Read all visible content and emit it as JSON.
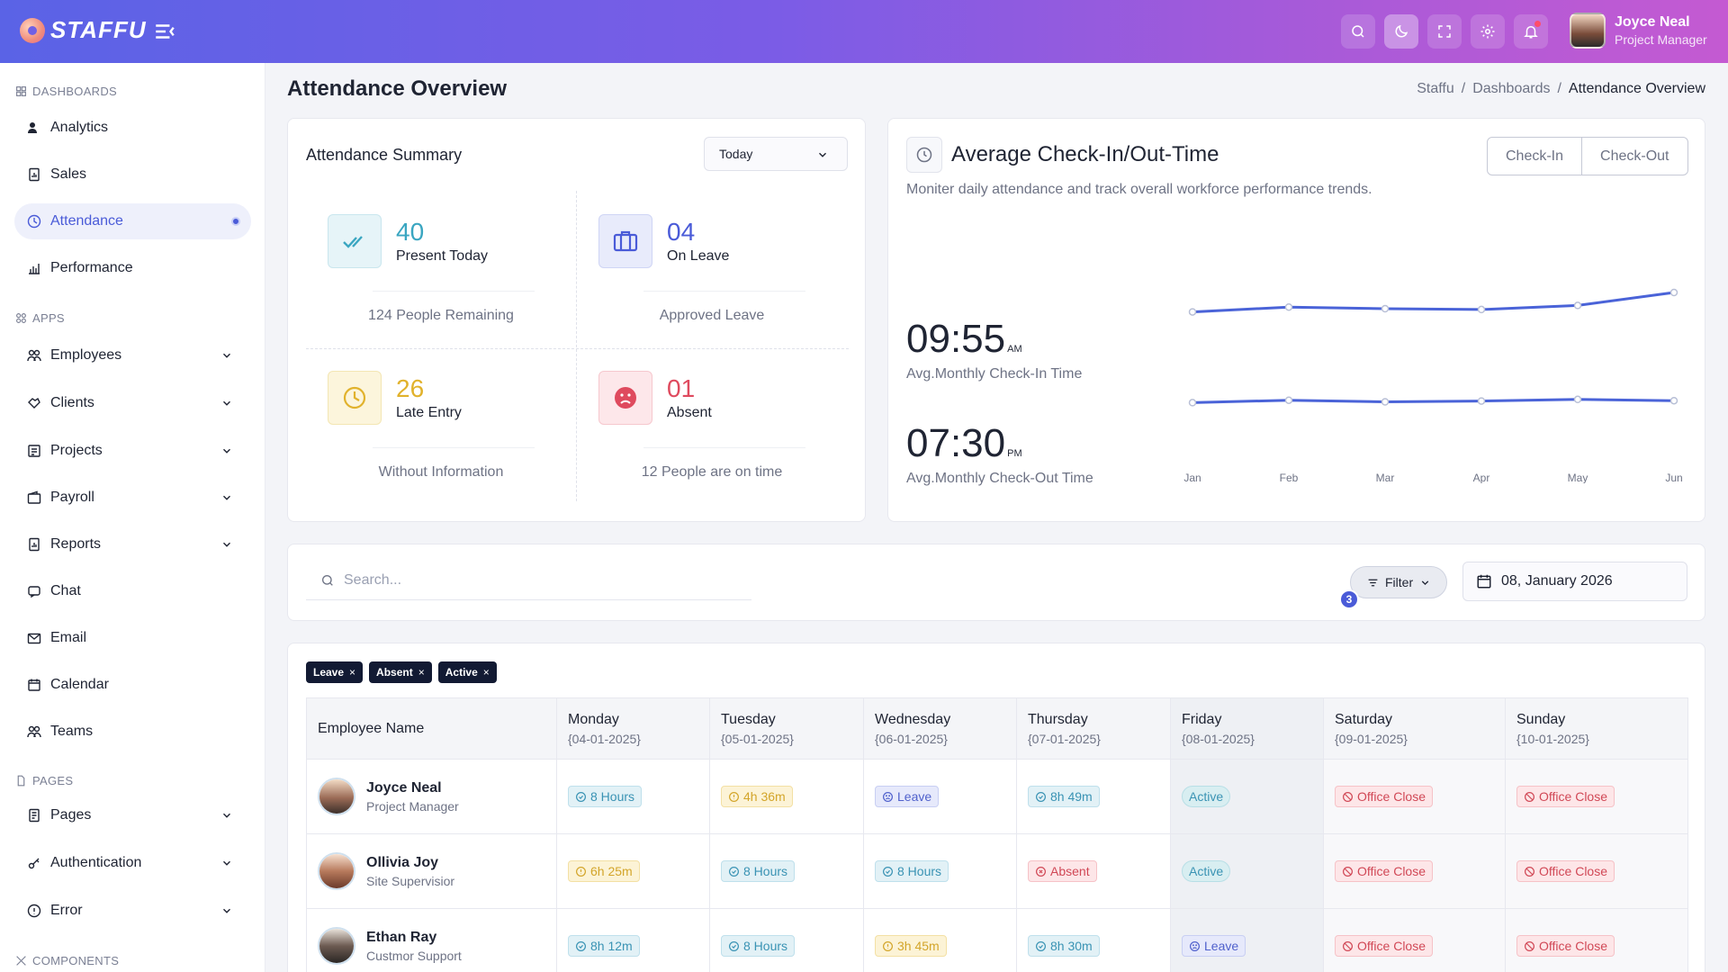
{
  "header": {
    "brand": "STAFFU",
    "user_name": "Joyce Neal",
    "user_role": "Project Manager",
    "icons": [
      "search-icon",
      "moon-icon",
      "fullscreen-icon",
      "gear-icon",
      "bell-icon"
    ]
  },
  "sidebar": {
    "sections": {
      "dashboards": "DASHBOARDS",
      "apps": "APPS",
      "pages": "PAGES",
      "components": "COMPONENTS"
    },
    "items": [
      {
        "label": "Analytics"
      },
      {
        "label": "Sales"
      },
      {
        "label": "Attendance",
        "active": true
      },
      {
        "label": "Performance"
      },
      {
        "label": "Employees"
      },
      {
        "label": "Clients"
      },
      {
        "label": "Projects"
      },
      {
        "label": "Payroll"
      },
      {
        "label": "Reports"
      },
      {
        "label": "Chat"
      },
      {
        "label": "Email"
      },
      {
        "label": "Calendar"
      },
      {
        "label": "Teams"
      },
      {
        "label": "Pages"
      },
      {
        "label": "Authentication"
      },
      {
        "label": "Error"
      }
    ]
  },
  "page": {
    "title": "Attendance Overview",
    "breadcrumb": [
      "Staffu",
      "Dashboards",
      "Attendance Overview"
    ],
    "separator": "/"
  },
  "summary": {
    "title": "Attendance Summary",
    "period": "Today",
    "stats": [
      {
        "value": "40",
        "label": "Present Today",
        "sub": "124 People Remaining",
        "color": "#3aa6c1"
      },
      {
        "value": "04",
        "label": "On Leave",
        "sub": "Approved Leave",
        "color": "#4a5bd8"
      },
      {
        "value": "26",
        "label": "Late Entry",
        "sub": "Without Information",
        "color": "#e1b22c"
      },
      {
        "value": "01",
        "label": "Absent",
        "sub": "12 People are on time",
        "color": "#df4a5e"
      }
    ]
  },
  "avg": {
    "title": "Average Check-In/Out-Time",
    "desc": "Moniter daily attendance and track overall workforce performance trends.",
    "toggle": [
      "Check-In",
      "Check-Out"
    ],
    "checkin_time": "09:55",
    "checkin_suffix": "AM",
    "checkin_label": "Avg.Monthly Check-In Time",
    "checkout_time": "07:30",
    "checkout_suffix": "PM",
    "checkout_label": "Avg.Monthly Check-Out Time"
  },
  "chart_data": {
    "type": "line",
    "x": [
      "Jan",
      "Feb",
      "Mar",
      "Apr",
      "May",
      "Jun"
    ],
    "series": [
      {
        "values": [
          0.78,
          0.81,
          0.8,
          0.795,
          0.82,
          0.9
        ]
      },
      {
        "values": [
          0.22,
          0.235,
          0.225,
          0.23,
          0.24,
          0.232
        ]
      }
    ],
    "ylim": [
      0,
      1
    ],
    "grid": false,
    "color": "#4a63d8"
  },
  "toolbar": {
    "search_placeholder": "Search...",
    "filter_label": "Filter",
    "filter_count": "3",
    "date": "08, January 2026"
  },
  "chips": [
    "Leave",
    "Absent",
    "Active"
  ],
  "chip_close": "×",
  "table": {
    "name_header": "Employee Name",
    "days": [
      {
        "day": "Monday",
        "date": "{04-01-2025}"
      },
      {
        "day": "Tuesday",
        "date": "{05-01-2025}"
      },
      {
        "day": "Wednesday",
        "date": "{06-01-2025}"
      },
      {
        "day": "Thursday",
        "date": "{07-01-2025}"
      },
      {
        "day": "Friday",
        "date": "{08-01-2025}"
      },
      {
        "day": "Saturday",
        "date": "{09-01-2025}"
      },
      {
        "day": "Sunday",
        "date": "{10-01-2025}"
      }
    ],
    "rows": [
      {
        "name": "Joyce Neal",
        "role": "Project Manager",
        "cells": [
          {
            "text": "8 Hours",
            "kind": "hours"
          },
          {
            "text": "4h 36m",
            "kind": "late"
          },
          {
            "text": "Leave",
            "kind": "leave"
          },
          {
            "text": "8h 49m",
            "kind": "hours"
          },
          {
            "text": "Active",
            "kind": "active"
          },
          {
            "text": "Office Close",
            "kind": "close"
          },
          {
            "text": "Office Close",
            "kind": "close"
          }
        ]
      },
      {
        "name": "Ollivia Joy",
        "role": "Site Supervisior",
        "cells": [
          {
            "text": "6h 25m",
            "kind": "late"
          },
          {
            "text": "8 Hours",
            "kind": "hours"
          },
          {
            "text": "8 Hours",
            "kind": "hours"
          },
          {
            "text": "Absent",
            "kind": "absent"
          },
          {
            "text": "Active",
            "kind": "active"
          },
          {
            "text": "Office Close",
            "kind": "close"
          },
          {
            "text": "Office Close",
            "kind": "close"
          }
        ]
      },
      {
        "name": "Ethan Ray",
        "role": "Custmor Support",
        "cells": [
          {
            "text": "8h 12m",
            "kind": "hours"
          },
          {
            "text": "8 Hours",
            "kind": "hours"
          },
          {
            "text": "3h 45m",
            "kind": "late"
          },
          {
            "text": "8h 30m",
            "kind": "hours"
          },
          {
            "text": "Leave",
            "kind": "leave"
          },
          {
            "text": "Office Close",
            "kind": "close"
          },
          {
            "text": "Office Close",
            "kind": "close"
          }
        ]
      }
    ]
  }
}
